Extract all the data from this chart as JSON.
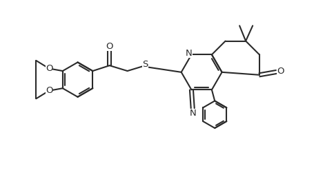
{
  "background_color": "#ffffff",
  "line_color": "#2a2a2a",
  "line_width": 1.5,
  "font_size": 9.5,
  "figsize": [
    4.55,
    2.6
  ],
  "dpi": 100,
  "xlim": [
    -0.5,
    10.0
  ],
  "ylim": [
    -1.2,
    6.0
  ]
}
